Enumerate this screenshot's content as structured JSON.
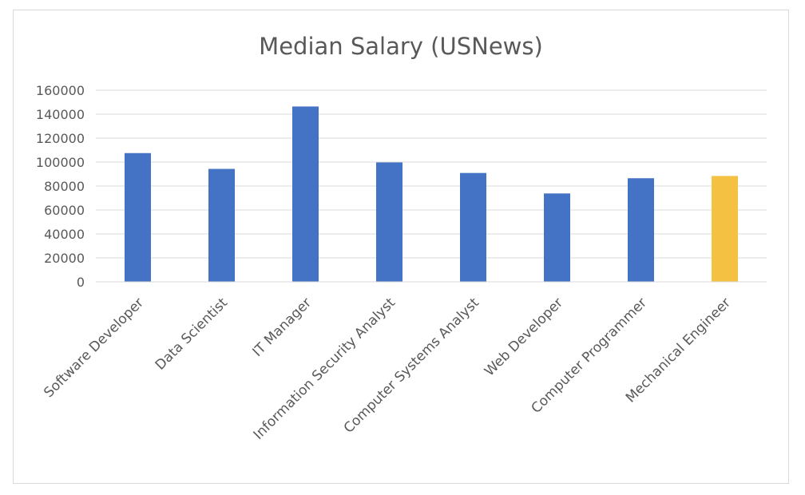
{
  "chart_data": {
    "type": "bar",
    "title": "Median Salary (USNews)",
    "xlabel": "",
    "ylabel": "",
    "ylim": [
      0,
      160000
    ],
    "yticks": [
      0,
      20000,
      40000,
      60000,
      80000,
      100000,
      120000,
      140000,
      160000
    ],
    "ytick_labels": [
      "0",
      "20000",
      "40000",
      "60000",
      "80000",
      "100000",
      "120000",
      "140000",
      "160000"
    ],
    "categories": [
      "Software Developer",
      "Data Scientist",
      "IT Manager",
      "Information Security Analyst",
      "Computer Systems Analyst",
      "Web Developer",
      "Computer Programmer",
      "Mechanical Engineer"
    ],
    "values": [
      107500,
      94300,
      146400,
      99700,
      90900,
      73800,
      86500,
      88400
    ],
    "bar_colors": [
      "#4472c4",
      "#4472c4",
      "#4472c4",
      "#4472c4",
      "#4472c4",
      "#4472c4",
      "#4472c4",
      "#f5c142"
    ],
    "gridline_color": "#d9d9d9",
    "grid": true,
    "legend": "none"
  }
}
